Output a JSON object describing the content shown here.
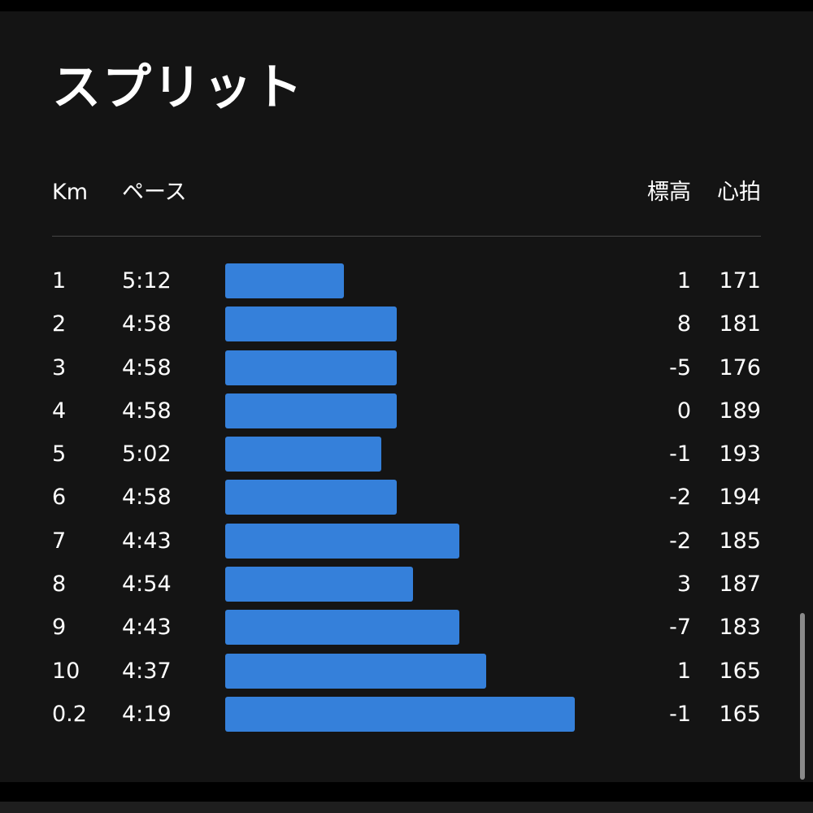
{
  "title": "スプリット",
  "headers": {
    "km": "Km",
    "pace": "ペース",
    "elevation": "標高",
    "heart_rate": "心拍"
  },
  "colors": {
    "bar": "#3580da",
    "background": "#141414",
    "text": "#ffffff"
  },
  "splits": [
    {
      "km": "1",
      "pace": "5:12",
      "elevation": "1",
      "heart_rate": "171"
    },
    {
      "km": "2",
      "pace": "4:58",
      "elevation": "8",
      "heart_rate": "181"
    },
    {
      "km": "3",
      "pace": "4:58",
      "elevation": "-5",
      "heart_rate": "176"
    },
    {
      "km": "4",
      "pace": "4:58",
      "elevation": "0",
      "heart_rate": "189"
    },
    {
      "km": "5",
      "pace": "5:02",
      "elevation": "-1",
      "heart_rate": "193"
    },
    {
      "km": "6",
      "pace": "4:58",
      "elevation": "-2",
      "heart_rate": "194"
    },
    {
      "km": "7",
      "pace": "4:43",
      "elevation": "-2",
      "heart_rate": "185"
    },
    {
      "km": "8",
      "pace": "4:54",
      "elevation": "3",
      "heart_rate": "187"
    },
    {
      "km": "9",
      "pace": "4:43",
      "elevation": "-7",
      "heart_rate": "183"
    },
    {
      "km": "10",
      "pace": "4:37",
      "elevation": "1",
      "heart_rate": "165"
    },
    {
      "km": "0.2",
      "pace": "4:19",
      "elevation": "-1",
      "heart_rate": "165"
    }
  ]
}
